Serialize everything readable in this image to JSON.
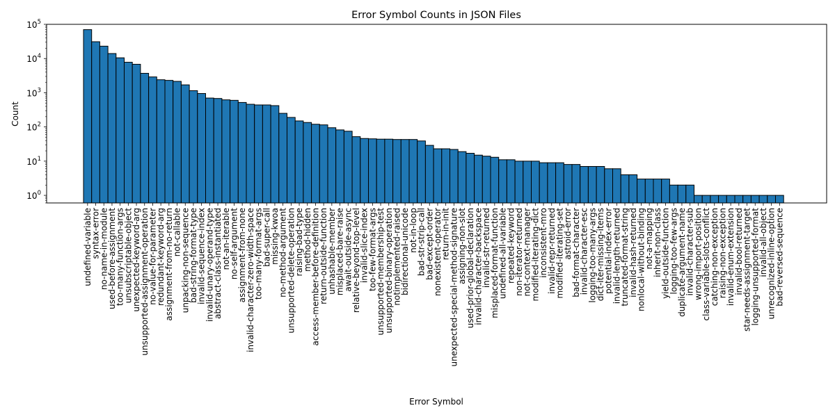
{
  "chart_data": {
    "type": "bar",
    "title": "Error Symbol Counts in JSON Files",
    "xlabel": "Error Symbol",
    "ylabel": "Count",
    "yscale": "log",
    "ylim": [
      0.6,
      100000
    ],
    "y_ticks": [
      {
        "value": 1,
        "base": "10",
        "exp": "0"
      },
      {
        "value": 10,
        "base": "10",
        "exp": "1"
      },
      {
        "value": 100,
        "base": "10",
        "exp": "2"
      },
      {
        "value": 1000,
        "base": "10",
        "exp": "3"
      },
      {
        "value": 10000,
        "base": "10",
        "exp": "4"
      },
      {
        "value": 100000,
        "base": "10",
        "exp": "5"
      }
    ],
    "grid": false,
    "bar_color": "#1f77b4",
    "categories": [
      "undefined-variable",
      "syntax-error",
      "no-name-in-module",
      "used-before-assignment",
      "too-many-function-args",
      "unsubscriptable-object",
      "unexpected-keyword-arg",
      "unsupported-assignment-operation",
      "no-value-for-parameter",
      "redundant-keyword-arg",
      "assignment-from-no-return",
      "not-callable",
      "unpacking-non-sequence",
      "bad-string-format-type",
      "invalid-sequence-index",
      "invalid-unary-operand-type",
      "abstract-class-instantiated",
      "not-an-iterable",
      "no-self-argument",
      "assignment-from-none",
      "invalid-character-zero-width-space",
      "too-many-format-args",
      "bad-super-call",
      "missing-kwoa",
      "no-method-argument",
      "unsupported-delete-operation",
      "raising-bad-type",
      "method-hidden",
      "access-member-before-definition",
      "return-outside-function",
      "unhashable-member",
      "misplaced-bare-raise",
      "await-outside-async",
      "relative-beyond-top-level",
      "invalid-slice-index",
      "too-few-format-args",
      "unsupported-membership-test",
      "unsupported-binary-operation",
      "notimplemented-raised",
      "bidirectional-unicode",
      "not-in-loop",
      "bad-str-strip-call",
      "bad-except-order",
      "nonexistent-operator",
      "return-in-init",
      "unexpected-special-method-signature",
      "assigning-non-slot",
      "used-prior-global-declaration",
      "invalid-character-backspace",
      "invalid-str-returned",
      "misplaced-format-function",
      "undefined-all-variable",
      "repeated-keyword",
      "non-iterator-returned",
      "not-context-manager",
      "modified-iterating-dict",
      "inconsistent-mro",
      "invalid-repr-returned",
      "modified-iterating-set",
      "astroid-error",
      "bad-format-character",
      "invalid-character-esc",
      "logging-too-many-args",
      "dict-iter-missing-items",
      "potential-index-error",
      "invalid-length-returned",
      "truncated-format-string",
      "invalid-hash-returned",
      "nonlocal-without-binding",
      "not-a-mapping",
      "inherit-non-class",
      "yield-outside-function",
      "logging-too-few-args",
      "duplicate-argument-name",
      "invalid-character-sub",
      "wrong-import-position",
      "class-variable-slots-conflict",
      "catching-non-exception",
      "raising-non-exception",
      "invalid-enum-extension",
      "invalid-bool-returned",
      "star-needs-assignment-target",
      "logging-unsupported-format",
      "invalid-all-object",
      "unrecognized-inline-option",
      "bad-reversed-sequence"
    ],
    "values": [
      70000,
      31000,
      23000,
      14000,
      10500,
      7800,
      6800,
      3700,
      2900,
      2400,
      2300,
      2150,
      1700,
      1150,
      950,
      700,
      680,
      620,
      600,
      520,
      460,
      440,
      440,
      420,
      250,
      190,
      150,
      135,
      120,
      115,
      95,
      82,
      75,
      52,
      46,
      45,
      44,
      44,
      43,
      43,
      43,
      39,
      29,
      23,
      23,
      22,
      19,
      17,
      15,
      14,
      13,
      11,
      11,
      10,
      10,
      10,
      9,
      9,
      9,
      8,
      8,
      7,
      7,
      7,
      6,
      6,
      4,
      4,
      3,
      3,
      3,
      3,
      2,
      2,
      2,
      1,
      1,
      1,
      1,
      1,
      1,
      1,
      1,
      1,
      1,
      1
    ]
  }
}
